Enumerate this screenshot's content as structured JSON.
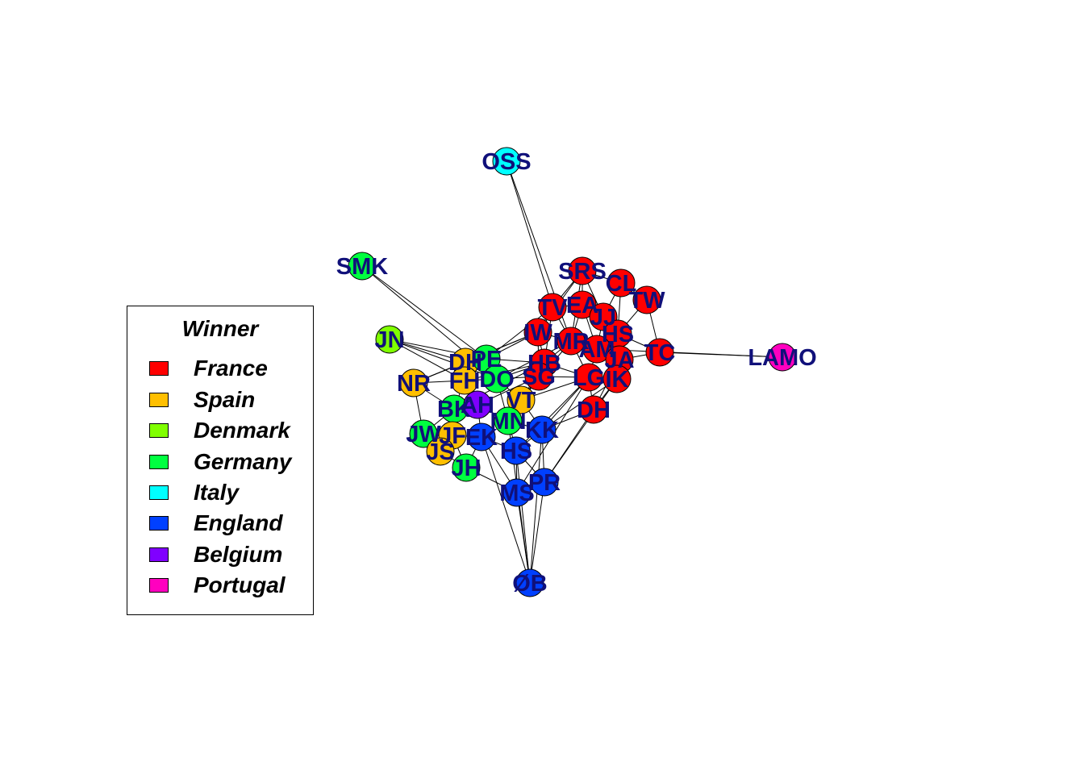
{
  "legend": {
    "title": "Winner",
    "items": [
      {
        "label": "France",
        "color": "#FF0000"
      },
      {
        "label": "Spain",
        "color": "#FFBF00"
      },
      {
        "label": "Denmark",
        "color": "#80FF00"
      },
      {
        "label": "Germany",
        "color": "#00FF40"
      },
      {
        "label": "Italy",
        "color": "#00FFFF"
      },
      {
        "label": "England",
        "color": "#0040FF"
      },
      {
        "label": "Belgium",
        "color": "#8000FF"
      },
      {
        "label": "Portugal",
        "color": "#FF00BF"
      }
    ]
  },
  "nodes": [
    {
      "id": "OSS",
      "group": "Italy"
    },
    {
      "id": "SMK",
      "group": "Germany"
    },
    {
      "id": "LAMO",
      "group": "Portugal"
    },
    {
      "id": "ØB",
      "group": "England"
    },
    {
      "id": "SRS",
      "group": "France"
    },
    {
      "id": "CL",
      "group": "France"
    },
    {
      "id": "TW",
      "group": "France"
    },
    {
      "id": "TV",
      "group": "France"
    },
    {
      "id": "EA",
      "group": "France"
    },
    {
      "id": "JJ",
      "group": "France"
    },
    {
      "id": "HS",
      "group": "France"
    },
    {
      "id": "IW",
      "group": "France"
    },
    {
      "id": "MR",
      "group": "France"
    },
    {
      "id": "AM",
      "group": "France"
    },
    {
      "id": "JA",
      "group": "France"
    },
    {
      "id": "TC",
      "group": "France"
    },
    {
      "id": "HB",
      "group": "France"
    },
    {
      "id": "SG",
      "group": "France"
    },
    {
      "id": "LG",
      "group": "France"
    },
    {
      "id": "IK",
      "group": "France"
    },
    {
      "id": "DH",
      "group": "France"
    },
    {
      "id": "JN",
      "group": "Denmark"
    },
    {
      "id": "DH",
      "group": "Spain"
    },
    {
      "id": "PE",
      "group": "Germany"
    },
    {
      "id": "NR",
      "group": "Spain"
    },
    {
      "id": "FH",
      "group": "Spain"
    },
    {
      "id": "DO",
      "group": "Germany"
    },
    {
      "id": "VT",
      "group": "Spain"
    },
    {
      "id": "BK",
      "group": "Germany"
    },
    {
      "id": "AH",
      "group": "Belgium"
    },
    {
      "id": "MN",
      "group": "Germany"
    },
    {
      "id": "KK",
      "group": "England"
    },
    {
      "id": "JW",
      "group": "Germany"
    },
    {
      "id": "JF",
      "group": "Spain"
    },
    {
      "id": "EK",
      "group": "England"
    },
    {
      "id": "JS",
      "group": "Spain"
    },
    {
      "id": "HS",
      "group": "England"
    },
    {
      "id": "JH",
      "group": "Germany"
    },
    {
      "id": "MS",
      "group": "England"
    },
    {
      "id": "PR",
      "group": "England"
    }
  ]
}
